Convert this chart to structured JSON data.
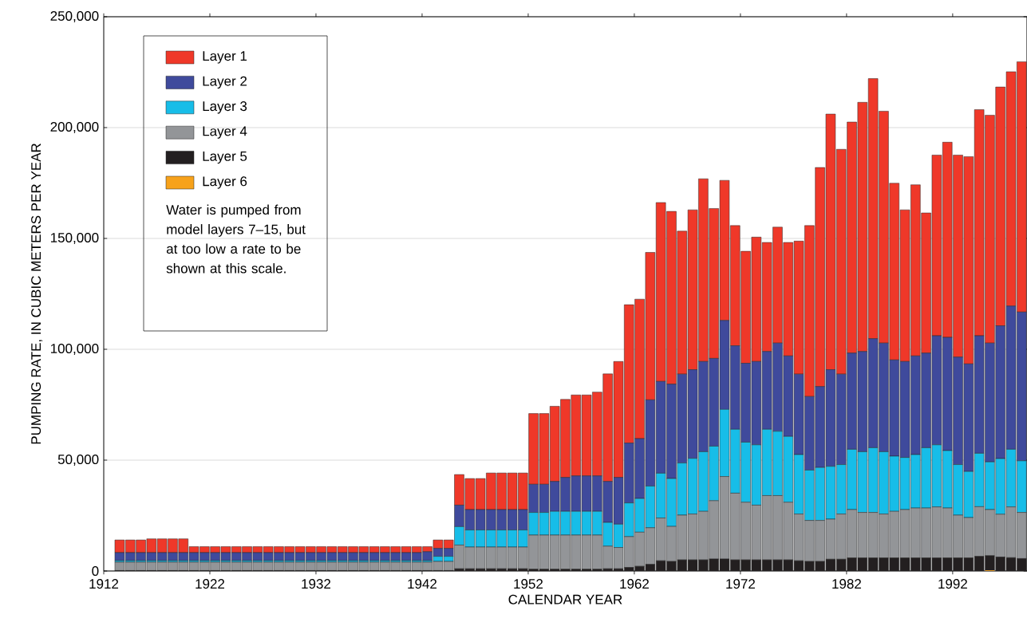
{
  "chart_data": {
    "type": "bar",
    "stacked": true,
    "xlabel": "CALENDAR YEAR",
    "ylabel": "PUMPING RATE, IN CUBIC METERS PER YEAR",
    "annotations": [
      "Water is pumped from model layers 7–15, but at too low a rate to be shown at this scale."
    ],
    "x": [
      1913.5,
      1914.5,
      1915.5,
      1916.5,
      1917.5,
      1918.5,
      1919.5,
      1920.5,
      1921.5,
      1922.5,
      1923.5,
      1924.5,
      1925.5,
      1926.5,
      1927.5,
      1928.5,
      1929.5,
      1930.5,
      1931.5,
      1932.5,
      1933.5,
      1934.5,
      1935.5,
      1936.5,
      1937.5,
      1938.5,
      1939.5,
      1940.5,
      1941.5,
      1942.5,
      1943.5,
      1944.5,
      1945.5,
      1946.5,
      1947.5,
      1948.5,
      1949.5,
      1950.5,
      1951.5,
      1952.5,
      1953.5,
      1954.5,
      1955.5,
      1956.5,
      1957.5,
      1958.5,
      1959.5,
      1960.5,
      1961.5,
      1962.5,
      1963.5,
      1964.5,
      1965.5,
      1966.5,
      1967.5,
      1968.5,
      1969.5,
      1970.5,
      1971.5,
      1972.5,
      1973.5,
      1974.5,
      1975.5,
      1976.5,
      1977.5,
      1978.5,
      1979.5,
      1980.5,
      1981.5,
      1982.5,
      1983.5,
      1984.5,
      1985.5,
      1986.5,
      1987.5,
      1988.5,
      1989.5,
      1990.5,
      1991.5,
      1992.5,
      1993.5,
      1994.5,
      1995.5,
      1996.5,
      1997.5,
      1998.5
    ],
    "series": [
      {
        "name": "Layer 6",
        "color": "#f7a21b",
        "values": [
          0,
          0,
          0,
          0,
          0,
          0,
          0,
          0,
          0,
          0,
          0,
          0,
          0,
          0,
          0,
          0,
          0,
          0,
          0,
          0,
          0,
          0,
          0,
          0,
          0,
          0,
          0,
          0,
          0,
          0,
          0,
          0,
          0,
          0,
          0,
          0,
          0,
          0,
          0,
          0,
          0,
          0,
          0,
          0,
          0,
          0,
          0,
          0,
          0,
          0,
          0,
          0,
          0,
          0,
          0,
          0,
          0,
          0,
          0,
          0,
          0,
          0,
          0,
          0,
          0,
          0,
          0,
          0,
          0,
          0,
          0,
          0,
          0,
          0,
          0,
          0,
          0,
          0,
          0,
          0,
          0,
          0,
          300,
          0,
          0,
          0
        ]
      },
      {
        "name": "Layer 5",
        "color": "#231f20",
        "values": [
          200,
          200,
          200,
          200,
          200,
          200,
          200,
          200,
          200,
          200,
          200,
          200,
          200,
          200,
          200,
          200,
          200,
          200,
          200,
          200,
          200,
          200,
          200,
          200,
          200,
          200,
          200,
          200,
          200,
          200,
          200,
          200,
          1000,
          1000,
          1000,
          1000,
          1000,
          1000,
          1000,
          800,
          800,
          800,
          800,
          800,
          800,
          800,
          1000,
          1000,
          1600,
          2100,
          3000,
          4600,
          4300,
          5000,
          5000,
          5000,
          5400,
          5400,
          5000,
          5000,
          5000,
          5000,
          5000,
          5000,
          4600,
          4300,
          4300,
          5300,
          5300,
          5900,
          5900,
          5900,
          5900,
          5900,
          5900,
          5900,
          5900,
          5900,
          5900,
          5900,
          5900,
          6600,
          6600,
          6300,
          6000,
          5600
        ]
      },
      {
        "name": "Layer 4",
        "color": "#939598",
        "values": [
          3800,
          3800,
          3800,
          3800,
          3800,
          3800,
          3800,
          3800,
          3800,
          3800,
          3800,
          3800,
          3800,
          3800,
          3800,
          3800,
          3800,
          3800,
          3800,
          3800,
          3800,
          3800,
          3800,
          3800,
          3800,
          3800,
          3800,
          3800,
          3800,
          3800,
          4100,
          4100,
          10700,
          9800,
          9800,
          9800,
          9800,
          9800,
          9800,
          15400,
          15400,
          15400,
          15400,
          15400,
          15400,
          15400,
          10200,
          9600,
          13900,
          15400,
          16500,
          19300,
          15800,
          20200,
          20700,
          21900,
          26300,
          37200,
          30100,
          26000,
          24700,
          29000,
          29000,
          26000,
          21100,
          18500,
          18500,
          18100,
          20400,
          21800,
          20500,
          20500,
          19800,
          21000,
          21800,
          22500,
          22500,
          23000,
          22500,
          19300,
          18200,
          22400,
          20800,
          19300,
          22900,
          20800
        ]
      },
      {
        "name": "Layer 3",
        "color": "#17bde8",
        "values": [
          700,
          700,
          700,
          700,
          700,
          700,
          700,
          700,
          700,
          700,
          700,
          700,
          700,
          700,
          700,
          700,
          700,
          700,
          700,
          700,
          700,
          700,
          700,
          700,
          700,
          700,
          700,
          700,
          700,
          700,
          2300,
          2300,
          8300,
          7700,
          7700,
          7700,
          7700,
          7700,
          7700,
          10200,
          10200,
          10700,
          10700,
          10700,
          10700,
          10700,
          10700,
          10500,
          15200,
          15200,
          18800,
          20200,
          21600,
          23500,
          25100,
          26900,
          24600,
          30300,
          28800,
          27100,
          27200,
          29900,
          29000,
          29700,
          26800,
          22700,
          23900,
          23800,
          22300,
          27200,
          27400,
          29200,
          28100,
          24900,
          23500,
          24100,
          27200,
          28000,
          25900,
          22800,
          20800,
          24100,
          21500,
          25100,
          26000,
          23300
        ]
      },
      {
        "name": "Layer 2",
        "color": "#3f4a9c",
        "values": [
          3600,
          3600,
          3600,
          3600,
          3600,
          3600,
          3600,
          3600,
          3600,
          3600,
          3600,
          3600,
          3600,
          3600,
          3600,
          3600,
          3600,
          3600,
          3600,
          3600,
          3600,
          3600,
          3600,
          3600,
          3600,
          3600,
          3600,
          3600,
          3600,
          4000,
          3600,
          3600,
          9700,
          9200,
          9200,
          9200,
          9200,
          9200,
          9200,
          12700,
          12700,
          13500,
          15300,
          16000,
          16000,
          16000,
          18500,
          21100,
          27000,
          27000,
          38900,
          41400,
          42600,
          40100,
          40000,
          40700,
          39600,
          40100,
          37700,
          35600,
          37600,
          35100,
          39800,
          36300,
          36300,
          33200,
          36500,
          43600,
          40800,
          43400,
          45200,
          49200,
          49000,
          43400,
          43300,
          44500,
          42700,
          49200,
          51100,
          48500,
          48500,
          53000,
          53600,
          59900,
          64600,
          67100
        ]
      },
      {
        "name": "Layer 1",
        "color": "#ef3829",
        "values": [
          5700,
          5700,
          5700,
          6200,
          6200,
          6200,
          6200,
          2700,
          2700,
          2700,
          2700,
          2700,
          2700,
          2700,
          2700,
          2700,
          2700,
          2700,
          2700,
          2700,
          2700,
          2700,
          2700,
          2700,
          2700,
          2700,
          2700,
          2700,
          2700,
          2300,
          3800,
          3800,
          13800,
          14000,
          14000,
          16500,
          16500,
          16500,
          16500,
          31900,
          31900,
          33900,
          35200,
          36500,
          36500,
          37800,
          48500,
          52300,
          62400,
          62900,
          66500,
          80700,
          77900,
          64500,
          72100,
          82400,
          67600,
          63200,
          54200,
          50500,
          56100,
          49200,
          52300,
          51200,
          60000,
          77100,
          98800,
          115300,
          101400,
          104200,
          112400,
          117300,
          104600,
          79700,
          68400,
          77200,
          63200,
          81500,
          88000,
          91100,
          93500,
          102000,
          102800,
          107700,
          105700,
          112900
        ]
      }
    ],
    "xlim": [
      1912,
      1999
    ],
    "ylim": [
      0,
      250000
    ],
    "xticks": [
      1912,
      1922,
      1932,
      1942,
      1952,
      1962,
      1972,
      1982,
      1992
    ],
    "yticks": [
      0,
      {
        "value": 50000,
        "label": "50,000"
      },
      {
        "value": 100000,
        "label": "100,000"
      },
      {
        "value": 150000,
        "label": "150,000"
      },
      {
        "value": 200000,
        "label": "200,000"
      },
      {
        "value": 250000,
        "label": "250,000"
      }
    ],
    "grid": "y",
    "legend": "top left"
  }
}
